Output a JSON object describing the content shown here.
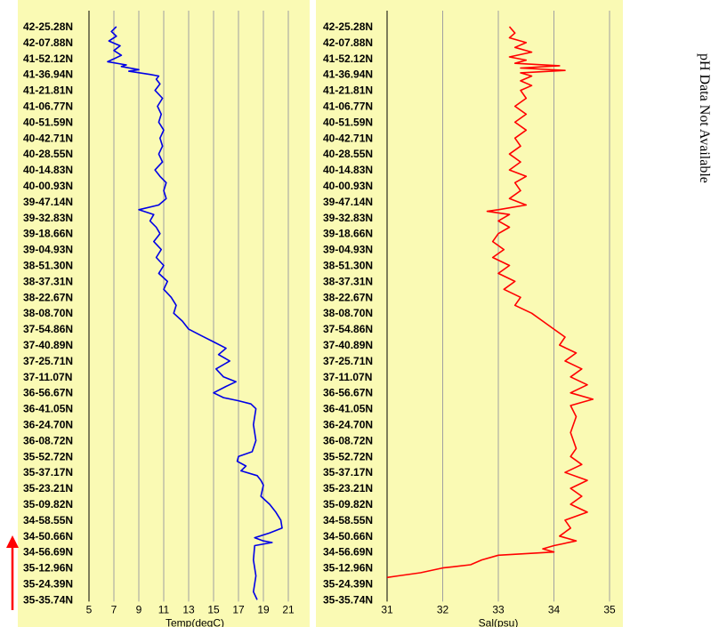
{
  "latitude_labels": [
    "42-25.28N",
    "42-07.88N",
    "41-52.12N",
    "41-36.94N",
    "41-21.81N",
    "41-06.77N",
    "40-51.59N",
    "40-42.71N",
    "40-28.55N",
    "40-14.83N",
    "40-00.93N",
    "39-47.14N",
    "39-32.83N",
    "39-18.66N",
    "39-04.93N",
    "38-51.30N",
    "38-37.31N",
    "38-22.67N",
    "38-08.70N",
    "37-54.86N",
    "37-40.89N",
    "37-25.71N",
    "37-11.07N",
    "36-56.67N",
    "36-41.05N",
    "36-24.70N",
    "36-08.72N",
    "35-52.72N",
    "35-37.17N",
    "35-23.21N",
    "35-09.82N",
    "34-58.55N",
    "34-50.66N",
    "34-56.69N",
    "35-12.96N",
    "35-24.39N",
    "35-35.74N"
  ],
  "ph_note": "pH Data Not Available",
  "colors": {
    "panel_bg": "#fafab4",
    "temp_line": "#0000e6",
    "sal_line": "#ff0000",
    "grid": "#a0a0a0",
    "arrow": "#ff0000"
  },
  "direction_icon": "arrow-up-icon",
  "chart_data": [
    {
      "type": "line",
      "xlabel": "Temp(degC)",
      "xlim": [
        5,
        22
      ],
      "xticks": [
        5,
        7,
        9,
        11,
        13,
        15,
        17,
        19,
        21
      ],
      "grid": true,
      "series": [
        {
          "values": [
            [
              7.2,
              0
            ],
            [
              6.8,
              0.3
            ],
            [
              7.2,
              0.6
            ],
            [
              6.6,
              0.9
            ],
            [
              7.5,
              1.2
            ],
            [
              7.0,
              1.5
            ],
            [
              7.6,
              1.8
            ],
            [
              6.5,
              2.2
            ],
            [
              8.0,
              2.4
            ],
            [
              7.6,
              2.5
            ],
            [
              9.0,
              2.7
            ],
            [
              8.2,
              2.8
            ],
            [
              9.9,
              3.0
            ],
            [
              10.6,
              3.1
            ],
            [
              10.4,
              3.3
            ],
            [
              10.7,
              3.6
            ],
            [
              10.3,
              4.0
            ],
            [
              10.9,
              4.5
            ],
            [
              10.5,
              5.0
            ],
            [
              10.8,
              5.5
            ],
            [
              10.6,
              6.0
            ],
            [
              11.0,
              6.5
            ],
            [
              10.7,
              7.0
            ],
            [
              10.9,
              7.5
            ],
            [
              10.6,
              8.0
            ],
            [
              10.9,
              8.5
            ],
            [
              10.3,
              9.0
            ],
            [
              10.7,
              9.4
            ],
            [
              11.2,
              9.8
            ],
            [
              11.0,
              10.3
            ],
            [
              11.2,
              10.8
            ],
            [
              10.6,
              11.2
            ],
            [
              9.0,
              11.5
            ],
            [
              10.2,
              11.8
            ],
            [
              9.9,
              12.2
            ],
            [
              10.4,
              12.6
            ],
            [
              10.7,
              13.0
            ],
            [
              10.2,
              13.5
            ],
            [
              10.8,
              14.0
            ],
            [
              10.4,
              14.5
            ],
            [
              11.0,
              15.0
            ],
            [
              10.6,
              15.5
            ],
            [
              11.3,
              16.0
            ],
            [
              11.0,
              16.5
            ],
            [
              11.6,
              17.0
            ],
            [
              12.0,
              17.5
            ],
            [
              11.8,
              18.0
            ],
            [
              12.5,
              18.5
            ],
            [
              13.0,
              19.0
            ],
            [
              14.0,
              19.4
            ],
            [
              15.0,
              19.8
            ],
            [
              16.0,
              20.2
            ],
            [
              15.4,
              20.6
            ],
            [
              16.3,
              21.0
            ],
            [
              15.2,
              21.5
            ],
            [
              15.8,
              22.0
            ],
            [
              16.8,
              22.3
            ],
            [
              16.0,
              22.6
            ],
            [
              15.0,
              23.0
            ],
            [
              15.8,
              23.3
            ],
            [
              17.0,
              23.5
            ],
            [
              18.0,
              23.7
            ],
            [
              18.4,
              24.0
            ],
            [
              18.2,
              25.0
            ],
            [
              18.4,
              26.0
            ],
            [
              18.1,
              26.7
            ],
            [
              17.0,
              27.0
            ],
            [
              16.9,
              27.3
            ],
            [
              17.6,
              27.6
            ],
            [
              17.2,
              27.9
            ],
            [
              18.5,
              28.2
            ],
            [
              18.8,
              28.5
            ],
            [
              19.0,
              28.8
            ],
            [
              18.8,
              29.5
            ],
            [
              19.5,
              30.0
            ],
            [
              20.0,
              30.5
            ],
            [
              20.4,
              31.0
            ],
            [
              20.5,
              31.5
            ],
            [
              19.5,
              31.8
            ],
            [
              18.3,
              32.1
            ],
            [
              19.0,
              32.3
            ],
            [
              19.7,
              32.4
            ],
            [
              18.3,
              32.6
            ],
            [
              18.2,
              33.5
            ],
            [
              18.4,
              34.5
            ],
            [
              18.2,
              35.5
            ],
            [
              18.5,
              36.0
            ]
          ]
        }
      ]
    },
    {
      "type": "line",
      "xlabel": "Sal(psu)",
      "xlim": [
        31,
        35
      ],
      "xticks": [
        31,
        32,
        33,
        34,
        35
      ],
      "grid": true,
      "series": [
        {
          "values": [
            [
              33.2,
              0
            ],
            [
              33.3,
              0.4
            ],
            [
              33.2,
              0.7
            ],
            [
              33.5,
              1.0
            ],
            [
              33.3,
              1.3
            ],
            [
              33.6,
              1.6
            ],
            [
              33.2,
              1.9
            ],
            [
              33.5,
              2.1
            ],
            [
              33.3,
              2.3
            ],
            [
              34.1,
              2.45
            ],
            [
              33.4,
              2.6
            ],
            [
              34.2,
              2.75
            ],
            [
              33.4,
              2.9
            ],
            [
              33.6,
              3.1
            ],
            [
              33.4,
              3.4
            ],
            [
              33.6,
              3.7
            ],
            [
              33.4,
              4.0
            ],
            [
              33.5,
              4.5
            ],
            [
              33.3,
              5.0
            ],
            [
              33.5,
              5.5
            ],
            [
              33.3,
              6.0
            ],
            [
              33.5,
              6.5
            ],
            [
              33.3,
              7.0
            ],
            [
              33.4,
              7.5
            ],
            [
              33.2,
              8.0
            ],
            [
              33.4,
              8.5
            ],
            [
              33.2,
              9.0
            ],
            [
              33.5,
              9.4
            ],
            [
              33.3,
              9.8
            ],
            [
              33.4,
              10.3
            ],
            [
              33.2,
              10.8
            ],
            [
              33.5,
              11.2
            ],
            [
              33.0,
              11.5
            ],
            [
              32.8,
              11.6
            ],
            [
              33.2,
              11.8
            ],
            [
              33.0,
              12.2
            ],
            [
              33.2,
              12.6
            ],
            [
              33.0,
              13.0
            ],
            [
              32.9,
              13.5
            ],
            [
              33.1,
              14.0
            ],
            [
              32.9,
              14.5
            ],
            [
              33.2,
              15.0
            ],
            [
              33.0,
              15.5
            ],
            [
              33.3,
              16.0
            ],
            [
              33.1,
              16.5
            ],
            [
              33.4,
              17.0
            ],
            [
              33.3,
              17.5
            ],
            [
              33.6,
              18.0
            ],
            [
              33.8,
              18.5
            ],
            [
              34.0,
              19.0
            ],
            [
              34.2,
              19.5
            ],
            [
              34.1,
              20.0
            ],
            [
              34.4,
              20.5
            ],
            [
              34.2,
              21.0
            ],
            [
              34.5,
              21.5
            ],
            [
              34.3,
              22.0
            ],
            [
              34.6,
              22.5
            ],
            [
              34.3,
              23.0
            ],
            [
              34.7,
              23.4
            ],
            [
              34.3,
              23.8
            ],
            [
              34.4,
              24.5
            ],
            [
              34.3,
              25.5
            ],
            [
              34.4,
              26.5
            ],
            [
              34.3,
              27.0
            ],
            [
              34.5,
              27.5
            ],
            [
              34.2,
              28.0
            ],
            [
              34.6,
              28.5
            ],
            [
              34.3,
              29.0
            ],
            [
              34.5,
              29.5
            ],
            [
              34.3,
              30.0
            ],
            [
              34.6,
              30.5
            ],
            [
              34.2,
              31.0
            ],
            [
              34.3,
              31.5
            ],
            [
              34.1,
              32.0
            ],
            [
              34.4,
              32.3
            ],
            [
              34.0,
              32.6
            ],
            [
              33.8,
              32.8
            ],
            [
              34.0,
              33.0
            ],
            [
              33.0,
              33.2
            ],
            [
              32.7,
              33.5
            ],
            [
              32.5,
              33.8
            ],
            [
              32.0,
              34.0
            ],
            [
              31.6,
              34.3
            ],
            [
              31.2,
              34.5
            ],
            [
              31.0,
              34.6
            ]
          ]
        }
      ]
    }
  ]
}
